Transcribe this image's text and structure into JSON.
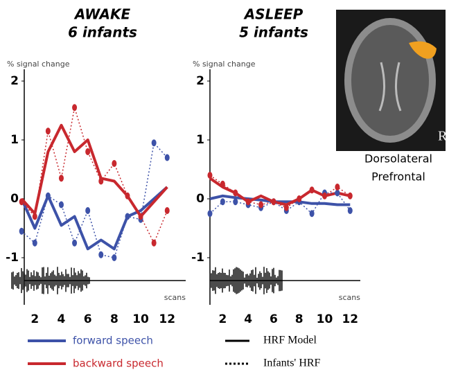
{
  "chart_data": [
    {
      "type": "line",
      "title": "AWAKE",
      "subtitle": "6 infants",
      "y_label": "% signal change",
      "x_label": "scans",
      "xlim": [
        1.2,
        13.4
      ],
      "xticks": [
        2,
        4,
        6,
        8,
        10,
        12
      ],
      "ylim": [
        -1.8,
        2.2
      ],
      "yticks": [
        -1,
        0,
        1,
        2
      ],
      "x": [
        1,
        2,
        3,
        4,
        5,
        6,
        7,
        8,
        9,
        10,
        11,
        12
      ],
      "series": [
        {
          "color": "#3d52a8",
          "style": "model",
          "values": [
            0,
            -0.5,
            0.05,
            -0.45,
            -0.3,
            -0.85,
            -0.7,
            -0.85,
            -0.3,
            -0.2,
            0,
            0.2
          ]
        },
        {
          "color": "#c8282e",
          "style": "model",
          "values": [
            0,
            -0.25,
            0.8,
            1.25,
            0.8,
            1.0,
            0.35,
            0.3,
            0.05,
            -0.3,
            -0.05,
            0.2
          ]
        },
        {
          "color": "#3d52a8",
          "style": "infants",
          "values": [
            -0.55,
            -0.75,
            0.05,
            -0.1,
            -0.75,
            -0.2,
            -0.95,
            -1.0,
            -0.3,
            -0.35,
            0.95,
            0.7
          ]
        },
        {
          "color": "#c8282e",
          "style": "infants",
          "values": [
            -0.05,
            -0.3,
            1.15,
            0.35,
            1.55,
            0.8,
            0.3,
            0.6,
            0.05,
            -0.3,
            -0.75,
            -0.2
          ]
        }
      ]
    },
    {
      "type": "line",
      "title": "ASLEEP",
      "subtitle": "5 infants",
      "y_label": "% signal change",
      "x_label": "scans",
      "xlim": [
        1,
        12.8
      ],
      "xticks": [
        2,
        4,
        6,
        8,
        10,
        12
      ],
      "ylim": [
        -1.8,
        2.2
      ],
      "yticks": [
        -1,
        0,
        1,
        2
      ],
      "x": [
        1,
        2,
        3,
        4,
        5,
        6,
        7,
        8,
        9,
        10,
        11,
        12
      ],
      "series": [
        {
          "color": "#3d52a8",
          "style": "model",
          "values": [
            0,
            0.05,
            0.02,
            0,
            -0.02,
            -0.05,
            -0.05,
            -0.05,
            -0.08,
            -0.08,
            -0.1,
            -0.1
          ]
        },
        {
          "color": "#c8282e",
          "style": "model",
          "values": [
            0.35,
            0.2,
            0.1,
            -0.05,
            0.05,
            -0.05,
            -0.1,
            0,
            0.15,
            0.05,
            0.1,
            0.05
          ]
        },
        {
          "color": "#3d52a8",
          "style": "infants",
          "values": [
            -0.25,
            -0.05,
            -0.05,
            -0.1,
            -0.15,
            -0.05,
            -0.2,
            -0.05,
            -0.25,
            0.1,
            0.1,
            -0.2
          ]
        },
        {
          "color": "#c8282e",
          "style": "infants",
          "values": [
            0.4,
            0.25,
            0.1,
            -0.05,
            -0.1,
            -0.05,
            -0.15,
            0,
            0.15,
            0.05,
            0.2,
            0.05
          ]
        }
      ]
    }
  ],
  "legend": {
    "colors": [
      {
        "label": "forward speech",
        "color": "#3d52a8"
      },
      {
        "label": "backward speech",
        "color": "#c8282e"
      }
    ],
    "styles": [
      {
        "label": "HRF Model",
        "style": "model"
      },
      {
        "label": "Infants' HRF",
        "style": "infants"
      }
    ]
  },
  "image": {
    "marker": "R",
    "caption": [
      "Dorsolateral",
      "Prefrontal"
    ]
  }
}
